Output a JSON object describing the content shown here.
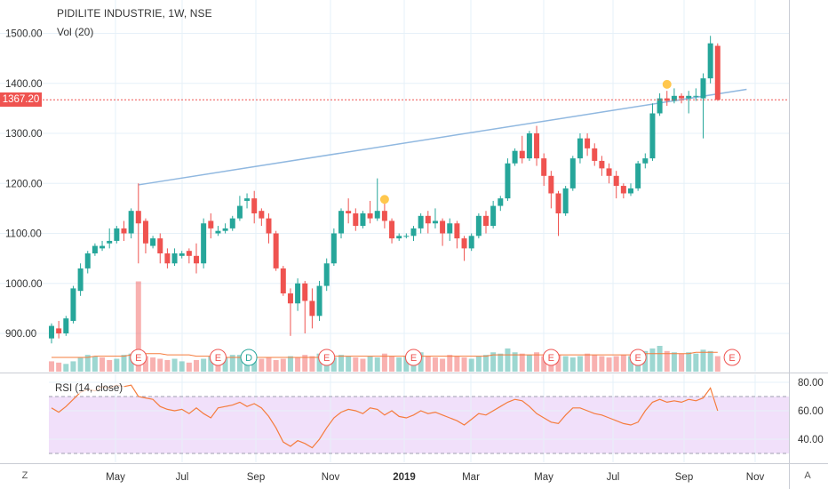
{
  "header": {
    "title": "PIDILITE INDUSTRIE, 1W, NSE",
    "volume_label": "Vol (20)"
  },
  "price_tag": "1367.20",
  "rsi_label": "RSI (14, close)",
  "corner_left": "Z",
  "corner_right": "A",
  "colors": {
    "up": "#26a69a",
    "down": "#ef5350",
    "trend": "#90b8e0",
    "rsi_line": "#f57c3d",
    "rsi_band": "#f1e0fa",
    "grid": "#e6f0f8"
  },
  "chart_data": [
    {
      "type": "candlestick",
      "ylim": [
        860,
        1540
      ],
      "y_ticks": [
        "1500.00",
        "1400.00",
        "1300.00",
        "1200.00",
        "1100.00",
        "1000.00",
        "900.00"
      ],
      "x_ticks": [
        "May",
        "Jul",
        "Sep",
        "Nov",
        "2019",
        "Mar",
        "May",
        "Jul",
        "Sep",
        "Nov"
      ],
      "last_price": 1367.2,
      "candles": [
        [
          890,
          915,
          880,
          920
        ],
        [
          910,
          900,
          890,
          925
        ],
        [
          900,
          930,
          895,
          935
        ],
        [
          925,
          990,
          920,
          995
        ],
        [
          985,
          1030,
          975,
          1040
        ],
        [
          1030,
          1060,
          1020,
          1065
        ],
        [
          1060,
          1075,
          1055,
          1080
        ],
        [
          1070,
          1075,
          1065,
          1085
        ],
        [
          1080,
          1085,
          1070,
          1110
        ],
        [
          1085,
          1110,
          1080,
          1115
        ],
        [
          1110,
          1100,
          1085,
          1125
        ],
        [
          1100,
          1145,
          1090,
          1150
        ],
        [
          1145,
          1120,
          1040,
          1200
        ],
        [
          1125,
          1080,
          1060,
          1130
        ],
        [
          1075,
          1090,
          1070,
          1095
        ],
        [
          1090,
          1060,
          1040,
          1100
        ],
        [
          1060,
          1040,
          1030,
          1070
        ],
        [
          1040,
          1060,
          1035,
          1070
        ],
        [
          1055,
          1060,
          1050,
          1065
        ],
        [
          1065,
          1055,
          1040,
          1070
        ],
        [
          1055,
          1040,
          1020,
          1080
        ],
        [
          1040,
          1120,
          1030,
          1130
        ],
        [
          1125,
          1110,
          1090,
          1140
        ],
        [
          1100,
          1105,
          1095,
          1115
        ],
        [
          1105,
          1110,
          1100,
          1120
        ],
        [
          1110,
          1130,
          1105,
          1135
        ],
        [
          1130,
          1155,
          1125,
          1175
        ],
        [
          1165,
          1170,
          1150,
          1180
        ],
        [
          1170,
          1140,
          1120,
          1185
        ],
        [
          1145,
          1130,
          1115,
          1150
        ],
        [
          1130,
          1100,
          1080,
          1140
        ],
        [
          1100,
          1030,
          1025,
          1105
        ],
        [
          1030,
          980,
          975,
          1035
        ],
        [
          980,
          960,
          895,
          990
        ],
        [
          960,
          1000,
          945,
          1010
        ],
        [
          1000,
          965,
          900,
          1005
        ],
        [
          965,
          935,
          910,
          990
        ],
        [
          935,
          995,
          925,
          1005
        ],
        [
          995,
          1040,
          985,
          1050
        ],
        [
          1040,
          1100,
          1035,
          1110
        ],
        [
          1100,
          1145,
          1090,
          1150
        ],
        [
          1145,
          1140,
          1120,
          1170
        ],
        [
          1140,
          1115,
          1105,
          1150
        ],
        [
          1115,
          1140,
          1110,
          1145
        ],
        [
          1140,
          1130,
          1120,
          1165
        ],
        [
          1130,
          1145,
          1125,
          1210
        ],
        [
          1145,
          1125,
          1110,
          1160
        ],
        [
          1125,
          1090,
          1080,
          1130
        ],
        [
          1090,
          1095,
          1085,
          1100
        ],
        [
          1095,
          1095,
          1090,
          1100
        ],
        [
          1095,
          1110,
          1085,
          1115
        ],
        [
          1110,
          1135,
          1100,
          1140
        ],
        [
          1135,
          1120,
          1100,
          1145
        ],
        [
          1120,
          1125,
          1110,
          1150
        ],
        [
          1125,
          1100,
          1075,
          1130
        ],
        [
          1100,
          1120,
          1085,
          1130
        ],
        [
          1120,
          1090,
          1070,
          1125
        ],
        [
          1090,
          1070,
          1045,
          1095
        ],
        [
          1070,
          1095,
          1065,
          1100
        ],
        [
          1095,
          1135,
          1090,
          1140
        ],
        [
          1135,
          1115,
          1100,
          1145
        ],
        [
          1115,
          1155,
          1110,
          1165
        ],
        [
          1155,
          1170,
          1145,
          1175
        ],
        [
          1170,
          1240,
          1165,
          1250
        ],
        [
          1240,
          1265,
          1235,
          1270
        ],
        [
          1265,
          1250,
          1240,
          1295
        ],
        [
          1250,
          1300,
          1245,
          1305
        ],
        [
          1300,
          1250,
          1235,
          1315
        ],
        [
          1250,
          1215,
          1195,
          1260
        ],
        [
          1215,
          1180,
          1150,
          1225
        ],
        [
          1180,
          1140,
          1095,
          1185
        ],
        [
          1140,
          1190,
          1135,
          1195
        ],
        [
          1190,
          1250,
          1185,
          1255
        ],
        [
          1250,
          1290,
          1240,
          1300
        ],
        [
          1290,
          1270,
          1255,
          1300
        ],
        [
          1270,
          1245,
          1235,
          1280
        ],
        [
          1245,
          1230,
          1215,
          1255
        ],
        [
          1230,
          1215,
          1200,
          1240
        ],
        [
          1215,
          1195,
          1170,
          1225
        ],
        [
          1195,
          1180,
          1170,
          1200
        ],
        [
          1180,
          1190,
          1175,
          1200
        ],
        [
          1190,
          1240,
          1185,
          1245
        ],
        [
          1240,
          1250,
          1230,
          1260
        ],
        [
          1250,
          1340,
          1245,
          1360
        ],
        [
          1340,
          1370,
          1335,
          1380
        ],
        [
          1370,
          1365,
          1355,
          1385
        ],
        [
          1365,
          1375,
          1360,
          1390
        ],
        [
          1375,
          1370,
          1360,
          1380
        ],
        [
          1370,
          1375,
          1340,
          1385
        ],
        [
          1375,
          1375,
          1365,
          1390
        ],
        [
          1370,
          1410,
          1290,
          1420
        ],
        [
          1410,
          1480,
          1400,
          1495
        ],
        [
          1475,
          1367,
          1365,
          1480
        ]
      ],
      "volumes": [
        [
          8,
          0
        ],
        [
          7,
          0
        ],
        [
          6,
          1
        ],
        [
          8,
          1
        ],
        [
          11,
          1
        ],
        [
          13,
          1
        ],
        [
          12,
          1
        ],
        [
          11,
          0
        ],
        [
          9,
          0
        ],
        [
          10,
          1
        ],
        [
          13,
          1
        ],
        [
          14,
          1
        ],
        [
          70,
          0
        ],
        [
          12,
          0
        ],
        [
          11,
          0
        ],
        [
          10,
          0
        ],
        [
          9,
          0
        ],
        [
          10,
          1
        ],
        [
          8,
          1
        ],
        [
          7,
          0
        ],
        [
          9,
          0
        ],
        [
          10,
          1
        ],
        [
          12,
          1
        ],
        [
          9,
          0
        ],
        [
          11,
          1
        ],
        [
          13,
          1
        ],
        [
          13,
          1
        ],
        [
          11,
          1
        ],
        [
          11,
          1
        ],
        [
          10,
          0
        ],
        [
          11,
          0
        ],
        [
          9,
          0
        ],
        [
          10,
          0
        ],
        [
          12,
          1
        ],
        [
          11,
          0
        ],
        [
          13,
          0
        ],
        [
          12,
          0
        ],
        [
          14,
          1
        ],
        [
          12,
          1
        ],
        [
          11,
          1
        ],
        [
          13,
          1
        ],
        [
          12,
          1
        ],
        [
          11,
          0
        ],
        [
          10,
          0
        ],
        [
          12,
          1
        ],
        [
          11,
          1
        ],
        [
          14,
          0
        ],
        [
          12,
          0
        ],
        [
          11,
          1
        ],
        [
          12,
          1
        ],
        [
          13,
          1
        ],
        [
          15,
          1
        ],
        [
          12,
          0
        ],
        [
          11,
          0
        ],
        [
          10,
          0
        ],
        [
          13,
          0
        ],
        [
          12,
          0
        ],
        [
          11,
          0
        ],
        [
          10,
          1
        ],
        [
          12,
          1
        ],
        [
          13,
          1
        ],
        [
          15,
          1
        ],
        [
          14,
          1
        ],
        [
          18,
          1
        ],
        [
          15,
          1
        ],
        [
          14,
          0
        ],
        [
          13,
          1
        ],
        [
          15,
          0
        ],
        [
          12,
          0
        ],
        [
          11,
          0
        ],
        [
          13,
          0
        ],
        [
          12,
          1
        ],
        [
          11,
          1
        ],
        [
          12,
          1
        ],
        [
          14,
          0
        ],
        [
          13,
          0
        ],
        [
          12,
          0
        ],
        [
          11,
          0
        ],
        [
          12,
          0
        ],
        [
          13,
          0
        ],
        [
          12,
          1
        ],
        [
          14,
          1
        ],
        [
          16,
          1
        ],
        [
          18,
          1
        ],
        [
          20,
          1
        ],
        [
          16,
          0
        ],
        [
          15,
          1
        ],
        [
          14,
          0
        ],
        [
          15,
          1
        ],
        [
          14,
          1
        ],
        [
          17,
          1
        ],
        [
          16,
          1
        ],
        [
          12,
          0
        ]
      ],
      "volume_ma": [
        11,
        11,
        11,
        11,
        11,
        11,
        12,
        12,
        12,
        12,
        12,
        13,
        14,
        14,
        14,
        14,
        13,
        13,
        13,
        13,
        12,
        12,
        12,
        11,
        11,
        11,
        11,
        11,
        11,
        11,
        11,
        11,
        11,
        11,
        11,
        11,
        11,
        11,
        11,
        12,
        12,
        12,
        12,
        12,
        12,
        12,
        12,
        12,
        12,
        12,
        12,
        12,
        12,
        12,
        12,
        12,
        12,
        12,
        12,
        12,
        12,
        13,
        13,
        13,
        13,
        13,
        13,
        13,
        13,
        13,
        13,
        13,
        13,
        13,
        13,
        13,
        13,
        13,
        13,
        13,
        13,
        13,
        14,
        14,
        14,
        14,
        14,
        14,
        14,
        15,
        15,
        15,
        15
      ],
      "rsi": {
        "ylim": [
          25,
          85
        ],
        "ticks": [
          "80.00",
          "60.00",
          "40.00"
        ],
        "band": [
          30,
          70
        ],
        "values": [
          62,
          59,
          63,
          68,
          73,
          75,
          74,
          77,
          76,
          78,
          77,
          78,
          70,
          69,
          68,
          63,
          61,
          60,
          61,
          58,
          62,
          58,
          55,
          62,
          63,
          64,
          66,
          63,
          65,
          62,
          56,
          48,
          38,
          35,
          39,
          37,
          34,
          40,
          48,
          55,
          59,
          61,
          60,
          58,
          62,
          61,
          57,
          60,
          56,
          55,
          57,
          60,
          58,
          59,
          57,
          55,
          53,
          50,
          54,
          58,
          57,
          60,
          63,
          66,
          68,
          67,
          63,
          58,
          55,
          52,
          51,
          57,
          62,
          62,
          60,
          58,
          57,
          55,
          53,
          51,
          50,
          52,
          60,
          66,
          68,
          66,
          67,
          66,
          68,
          67,
          69,
          76,
          60
        ]
      },
      "trend_line": {
        "from": [
          12,
          1197
        ],
        "to": [
          96,
          1388
        ]
      },
      "earnings_markers": [
        12,
        23,
        38,
        50,
        69,
        81,
        94
      ],
      "dividend_markers": [
        27
      ],
      "event_dots": [
        [
          46,
          1168
        ],
        [
          85,
          1398
        ]
      ]
    }
  ]
}
